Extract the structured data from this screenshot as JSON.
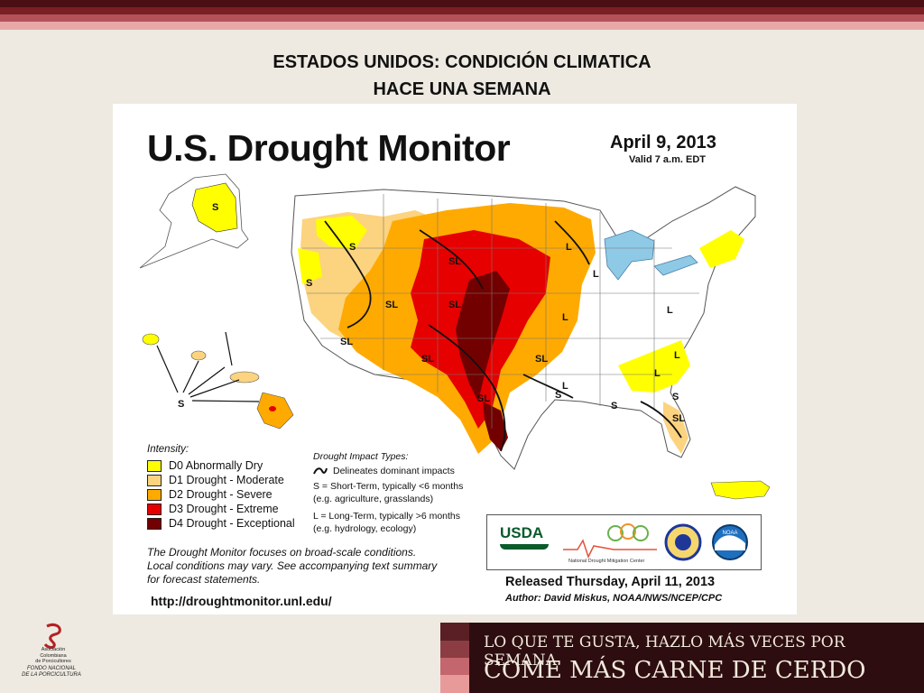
{
  "slide": {
    "title_line1": "ESTADOS UNIDOS: CONDICIÓN CLIMATICA",
    "title_line2": "HACE UNA SEMANA",
    "stripe_colors": [
      "#4a0f12",
      "#7a1f24",
      "#b45058",
      "#e8a8a8"
    ]
  },
  "map": {
    "title": "U.S. Drought Monitor",
    "date": "April 9, 2013",
    "valid": "Valid 7 a.m. EDT",
    "intensity_heading": "Intensity:",
    "intensity": [
      {
        "code": "D0",
        "label": "D0 Abnormally Dry",
        "color": "#ffff00"
      },
      {
        "code": "D1",
        "label": "D1 Drought - Moderate",
        "color": "#fcd37f"
      },
      {
        "code": "D2",
        "label": "D2 Drought - Severe",
        "color": "#ffaa00"
      },
      {
        "code": "D3",
        "label": "D3 Drought - Extreme",
        "color": "#e60000"
      },
      {
        "code": "D4",
        "label": "D4 Drought - Exceptional",
        "color": "#730000"
      }
    ],
    "impact_heading": "Drought Impact Types:",
    "impact_lines": [
      "Delineates dominant impacts",
      "S = Short-Term, typically <6 months",
      "(e.g. agriculture, grasslands)",
      "L = Long-Term, typically >6 months",
      "(e.g. hydrology, ecology)"
    ],
    "note_lines": [
      "The Drought Monitor focuses on broad-scale conditions.",
      "Local conditions may vary. See accompanying text summary",
      "for forecast statements."
    ],
    "url": "http://droughtmonitor.unl.edu/",
    "released": "Released Thursday, April 11, 2013",
    "author": "Author: David Miskus, NOAA/NWS/NCEP/CPC",
    "logos": {
      "usda": "USDA",
      "ndmc": "National Drought Mitigation Center",
      "noaa": "NOAA"
    },
    "region_labels": [
      {
        "text": "S"
      },
      {
        "text": "S"
      },
      {
        "text": "SL"
      },
      {
        "text": "SL"
      },
      {
        "text": "SL"
      },
      {
        "text": "SL"
      },
      {
        "text": "SL"
      },
      {
        "text": "SL"
      },
      {
        "text": "SL"
      },
      {
        "text": "L"
      },
      {
        "text": "L"
      },
      {
        "text": "L"
      },
      {
        "text": "L"
      },
      {
        "text": "L"
      },
      {
        "text": "S"
      },
      {
        "text": "SL"
      },
      {
        "text": "S"
      },
      {
        "text": "L"
      },
      {
        "text": "L"
      },
      {
        "text": "S"
      },
      {
        "text": "S"
      },
      {
        "text": "S"
      }
    ]
  },
  "org": {
    "name_lines": [
      "Asociación",
      "Colombiana",
      "de Porcicultores"
    ],
    "fund_lines": [
      "FONDO NACIONAL",
      "DE LA PORCICULTURA"
    ]
  },
  "banner": {
    "line1": "LO QUE TE GUSTA, HAZLO MÁS VECES POR SEMANA.",
    "line2": "COME MÁS CARNE DE CERDO",
    "bar_colors": [
      "#5a1f24",
      "#8c3d44",
      "#c4666d",
      "#e89a9a"
    ]
  }
}
